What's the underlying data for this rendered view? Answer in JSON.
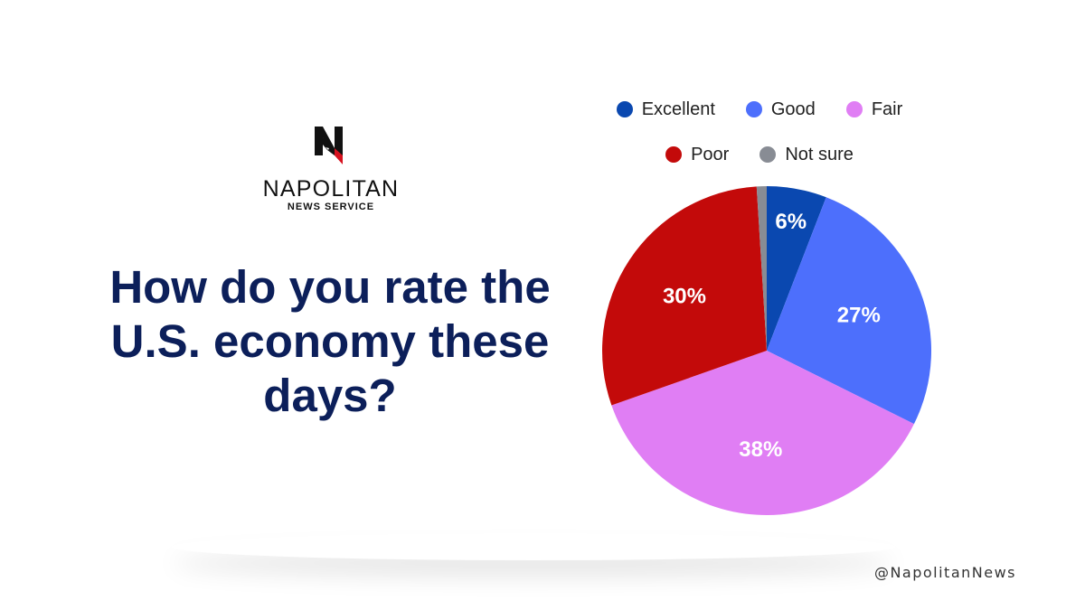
{
  "brand": {
    "name": "NAPOLITAN",
    "subtitle": "NEWS SERVICE",
    "handle": "@NapolitanNews"
  },
  "question": "How do you rate the U.S. economy these days?",
  "chart_data": {
    "type": "pie",
    "categories": [
      "Excellent",
      "Good",
      "Fair",
      "Poor",
      "Not sure"
    ],
    "values": [
      6,
      27,
      38,
      30,
      1
    ],
    "labels": [
      "6%",
      "27%",
      "38%",
      "30%",
      ""
    ],
    "colors": [
      "#0a48b0",
      "#4d6ffc",
      "#e07ef4",
      "#c30a0a",
      "#888c94"
    ],
    "legend_placement": "top",
    "start": "12 o'clock, clockwise"
  }
}
